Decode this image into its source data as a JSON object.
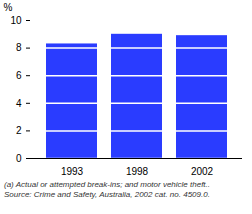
{
  "chart_data": {
    "type": "bar",
    "y_label": "%",
    "categories": [
      "1993",
      "1998",
      "2002"
    ],
    "values": [
      8.3,
      9.0,
      8.9
    ],
    "color": "#2a3cff",
    "ylim": [
      0,
      10
    ],
    "yticks": [
      0,
      2,
      4,
      6,
      8,
      10
    ],
    "grid": true,
    "annotations": [
      "(a) Actual or attempted break-ins; and motor vehicle theft..",
      "Source: Crime and Safety, Australia, 2002 cat. no. 4509.0."
    ]
  }
}
